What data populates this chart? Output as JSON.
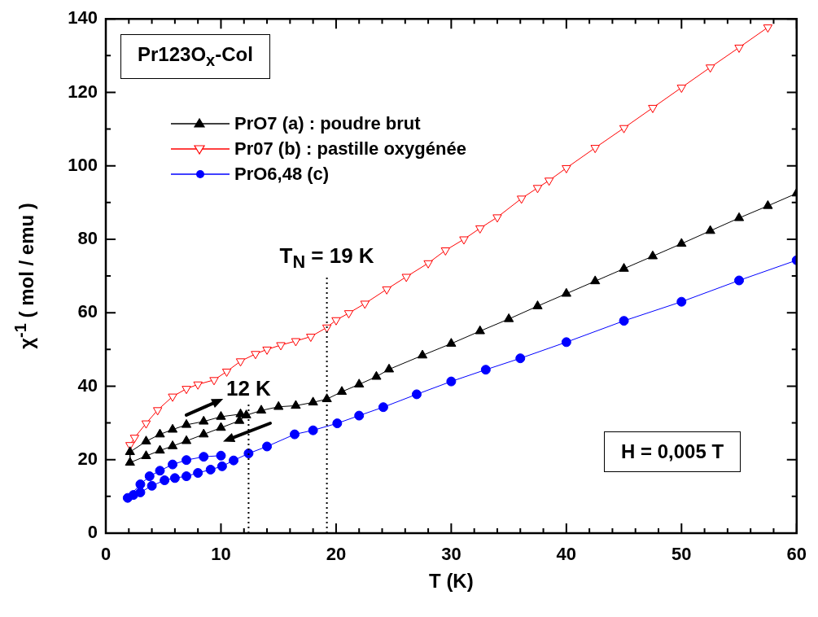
{
  "chart_data": {
    "type": "line",
    "xlabel": "T (K)",
    "ylabel": "χ$^{-1}$ ( mol / emu )",
    "annotations": [
      "Pr123O$_{x}$-Col",
      "H = 0,005 T",
      {
        "text": "T$_{N}$ = 19 K",
        "x": 19.2,
        "y": 70
      },
      {
        "text": "12 K",
        "x": 12.4,
        "y": 35
      }
    ],
    "xlim": [
      0,
      60
    ],
    "ylim": [
      0,
      140
    ],
    "xticks": [
      0,
      {
        "value": 2,
        "label": null
      },
      {
        "value": 4,
        "label": null
      },
      {
        "value": 6,
        "label": null
      },
      {
        "value": 8,
        "label": null
      },
      10,
      {
        "value": 12,
        "label": null
      },
      {
        "value": 14,
        "label": null
      },
      {
        "value": 16,
        "label": null
      },
      {
        "value": 18,
        "label": null
      },
      20,
      {
        "value": 22,
        "label": null
      },
      {
        "value": 24,
        "label": null
      },
      {
        "value": 26,
        "label": null
      },
      {
        "value": 28,
        "label": null
      },
      30,
      {
        "value": 32,
        "label": null
      },
      {
        "value": 34,
        "label": null
      },
      {
        "value": 36,
        "label": null
      },
      {
        "value": 38,
        "label": null
      },
      40,
      {
        "value": 42,
        "label": null
      },
      {
        "value": 44,
        "label": null
      },
      {
        "value": 46,
        "label": null
      },
      {
        "value": 48,
        "label": null
      },
      50,
      {
        "value": 52,
        "label": null
      },
      {
        "value": 54,
        "label": null
      },
      {
        "value": 56,
        "label": null
      },
      {
        "value": 58,
        "label": null
      },
      60
    ],
    "yticks": [
      0,
      {
        "value": 10,
        "label": null
      },
      20,
      {
        "value": 30,
        "label": null
      },
      40,
      {
        "value": 50,
        "label": null
      },
      60,
      {
        "value": 70,
        "label": null
      },
      80,
      {
        "value": 90,
        "label": null
      },
      100,
      {
        "value": 110,
        "label": null
      },
      120,
      {
        "value": 130,
        "label": null
      },
      140
    ],
    "grid": false,
    "legend": "top left",
    "line_style": "solid",
    "ref_lines": [
      {
        "axis": "x",
        "value": 19.2,
        "line_style": "dotted"
      },
      {
        "axis": "x",
        "value": 12.4,
        "line_style": "dotted"
      }
    ],
    "series": [
      {
        "name": "PrO7 (a) : poudre brut",
        "color": "#000000",
        "marker": "triangle",
        "x": [
          11.7,
          10,
          8.5,
          7.0,
          5.8,
          4.7,
          3.5,
          2.1,
          2.1,
          3.5,
          4.7,
          5.8,
          7.0,
          8.5,
          10,
          11.6,
          12.2,
          13.5,
          15,
          16.5,
          18,
          19.2,
          20.5,
          22,
          23.5,
          24.6,
          27.5,
          30,
          32.5,
          35,
          37.5,
          40,
          42.5,
          45,
          47.5,
          50,
          52.5,
          55,
          57.5,
          60
        ],
        "values": [
          32.4,
          31.7,
          30.4,
          29.5,
          28.2,
          26.9,
          25.0,
          22.1,
          19.2,
          21.0,
          22.5,
          23.7,
          25.1,
          26.9,
          28.7,
          30.6,
          32.1,
          33.4,
          34.4,
          34.7,
          35.6,
          36.5,
          38.5,
          40.5,
          42.6,
          44.6,
          48.4,
          51.6,
          55.0,
          58.3,
          61.8,
          65.2,
          68.6,
          72.0,
          75.4,
          78.8,
          82.3,
          85.8,
          89.1,
          92.5
        ]
      },
      {
        "name": "Pr07 (b) : pastille oxygénée",
        "color": "#ff0000",
        "marker": "triangle_down",
        "x": [
          2.1,
          2.5,
          3.5,
          4.5,
          5.8,
          7,
          8,
          9.4,
          10.5,
          11.7,
          13,
          14,
          15.2,
          16.5,
          17.8,
          19.2,
          20,
          21.1,
          22.5,
          24.4,
          26.1,
          28,
          29.5,
          31.1,
          32.5,
          34,
          36.1,
          37.5,
          38.5,
          40,
          42.5,
          45,
          47.5,
          50,
          52.5,
          55,
          57.5
        ],
        "values": [
          24.0,
          26,
          29.9,
          33.5,
          37.2,
          39.3,
          40.5,
          41.7,
          44,
          46.8,
          48.8,
          50,
          51.2,
          52.3,
          53.5,
          56.0,
          58,
          59.9,
          62.5,
          66.4,
          69.8,
          73.5,
          77,
          80.0,
          83,
          86,
          91.1,
          94,
          96,
          99.4,
          104.9,
          110.3,
          115.8,
          121.3,
          126.8,
          132.2,
          137.7
        ]
      },
      {
        "name": "PrO6,48 (c)",
        "color": "#0000ff",
        "marker": "circle",
        "x": [
          10,
          8.5,
          7,
          5.8,
          4.7,
          3.8,
          3.0,
          1.9,
          2.4,
          3.0,
          4.0,
          5.1,
          6,
          7,
          8,
          9.1,
          10.1,
          11.1,
          12.4,
          14,
          16.4,
          18,
          20.1,
          22,
          24.1,
          27,
          30,
          33,
          36,
          40,
          45,
          50,
          55,
          60
        ],
        "values": [
          21.1,
          20.8,
          19.9,
          18.7,
          17.0,
          15.5,
          13.3,
          9.6,
          10.4,
          11.1,
          12.9,
          14.4,
          15.0,
          15.5,
          16.4,
          17.3,
          18.2,
          19.8,
          21.7,
          23.6,
          26.9,
          28.0,
          29.9,
          32.0,
          34.3,
          37.8,
          41.3,
          44.5,
          47.6,
          52.0,
          57.8,
          63.0,
          68.8,
          74.3
        ]
      }
    ]
  }
}
